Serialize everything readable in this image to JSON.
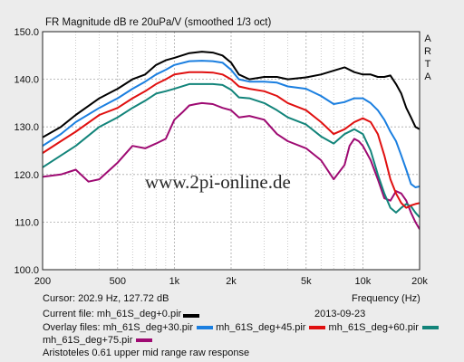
{
  "title": "FR Magnitude dB re 20uPa/V (smoothed 1/3 oct)",
  "brand": "ARTA",
  "watermark": "www.2pi-online.de",
  "cursor_text": "Cursor: 202.9 Hz, 127.72 dB",
  "x_axis_title": "Frequency (Hz)",
  "date": "2013-09-23",
  "current_file_label": "Current file: mh_61S_deg+0.pir",
  "overlay_prefix": "Overlay files:",
  "overlay_files": [
    "mh_61S_deg+30.pir",
    "mh_61S_deg+45.pir",
    "mh_61S_deg+60.pir",
    "mh_61S_deg+75.pir"
  ],
  "description": "Aristoteles 0.61 upper mid range raw response",
  "colors": {
    "background": "#ececec",
    "plot_background": "#ffffff",
    "grid": "#a9a9a9"
  },
  "chart_data": {
    "type": "line",
    "title": "FR Magnitude dB re 20uPa/V (smoothed 1/3 oct)",
    "xlabel": "Frequency (Hz)",
    "ylabel": "",
    "x_scale": "log",
    "xlim": [
      200,
      20000
    ],
    "ylim": [
      100,
      150
    ],
    "grid": true,
    "x_ticks": [
      200,
      500,
      1000,
      2000,
      5000,
      10000,
      20000
    ],
    "x_tick_labels": [
      "200",
      "500",
      "1k",
      "2k",
      "5k",
      "10k",
      "20k"
    ],
    "x_minor_ticks": [
      300,
      400,
      600,
      700,
      800,
      900,
      3000,
      4000,
      6000,
      7000,
      8000,
      9000
    ],
    "y_ticks": [
      100,
      110,
      120,
      130,
      140,
      150
    ],
    "y_tick_labels": [
      "100.0",
      "110.0",
      "120.0",
      "130.0",
      "140.0",
      "150.0"
    ],
    "series": [
      {
        "name": "mh_61S_deg+0.pir",
        "color": "#000000",
        "points": [
          [
            200,
            127.8
          ],
          [
            250,
            130
          ],
          [
            300,
            132.5
          ],
          [
            400,
            136
          ],
          [
            500,
            138
          ],
          [
            600,
            140
          ],
          [
            700,
            141
          ],
          [
            800,
            143
          ],
          [
            900,
            144
          ],
          [
            1000,
            144.5
          ],
          [
            1200,
            145.5
          ],
          [
            1400,
            145.8
          ],
          [
            1600,
            145.6
          ],
          [
            1800,
            145
          ],
          [
            2000,
            143.5
          ],
          [
            2200,
            141
          ],
          [
            2500,
            140
          ],
          [
            3000,
            140.5
          ],
          [
            3500,
            140.5
          ],
          [
            4000,
            140
          ],
          [
            5000,
            140.4
          ],
          [
            6000,
            141
          ],
          [
            7000,
            141.8
          ],
          [
            8000,
            142.5
          ],
          [
            9000,
            141.5
          ],
          [
            10000,
            141
          ],
          [
            11000,
            141
          ],
          [
            12000,
            140.5
          ],
          [
            13000,
            140.5
          ],
          [
            14000,
            140.8
          ],
          [
            15000,
            139
          ],
          [
            16000,
            137
          ],
          [
            17000,
            134
          ],
          [
            18000,
            132
          ],
          [
            19000,
            130
          ],
          [
            20000,
            129.5
          ]
        ]
      },
      {
        "name": "mh_61S_deg+30.pir",
        "color": "#1b7fe0",
        "points": [
          [
            200,
            126
          ],
          [
            250,
            128.5
          ],
          [
            300,
            131
          ],
          [
            400,
            134
          ],
          [
            500,
            136
          ],
          [
            600,
            138
          ],
          [
            700,
            139.5
          ],
          [
            800,
            141
          ],
          [
            900,
            142
          ],
          [
            1000,
            143
          ],
          [
            1200,
            143.8
          ],
          [
            1400,
            143.9
          ],
          [
            1600,
            143.8
          ],
          [
            1800,
            143.5
          ],
          [
            2000,
            142
          ],
          [
            2200,
            140
          ],
          [
            2500,
            139.5
          ],
          [
            3000,
            139.5
          ],
          [
            3500,
            139.3
          ],
          [
            4000,
            138.5
          ],
          [
            5000,
            138
          ],
          [
            6000,
            136.5
          ],
          [
            7000,
            134.8
          ],
          [
            8000,
            135.2
          ],
          [
            9000,
            136
          ],
          [
            10000,
            136
          ],
          [
            11000,
            135
          ],
          [
            12000,
            133.5
          ],
          [
            13000,
            131.5
          ],
          [
            14000,
            129
          ],
          [
            15000,
            127
          ],
          [
            16000,
            124
          ],
          [
            17000,
            121
          ],
          [
            18000,
            118
          ],
          [
            19000,
            117.3
          ],
          [
            20000,
            117.5
          ]
        ]
      },
      {
        "name": "mh_61S_deg+45.pir",
        "color": "#e01010",
        "points": [
          [
            200,
            124.5
          ],
          [
            250,
            127
          ],
          [
            300,
            129
          ],
          [
            400,
            132.5
          ],
          [
            500,
            134
          ],
          [
            600,
            136
          ],
          [
            700,
            137.5
          ],
          [
            800,
            139
          ],
          [
            900,
            140
          ],
          [
            1000,
            141
          ],
          [
            1200,
            141.5
          ],
          [
            1400,
            141.5
          ],
          [
            1600,
            141.4
          ],
          [
            1800,
            141
          ],
          [
            2000,
            140
          ],
          [
            2200,
            138.5
          ],
          [
            2500,
            138
          ],
          [
            3000,
            137.5
          ],
          [
            3500,
            136.5
          ],
          [
            4000,
            135
          ],
          [
            5000,
            133.5
          ],
          [
            6000,
            131
          ],
          [
            7000,
            128.5
          ],
          [
            8000,
            129.5
          ],
          [
            9000,
            131
          ],
          [
            10000,
            131.8
          ],
          [
            11000,
            131
          ],
          [
            12000,
            128.5
          ],
          [
            13000,
            124
          ],
          [
            14000,
            119
          ],
          [
            15000,
            116
          ],
          [
            16000,
            114
          ],
          [
            17000,
            113
          ],
          [
            18000,
            113.5
          ],
          [
            19000,
            113.8
          ],
          [
            20000,
            114
          ]
        ]
      },
      {
        "name": "mh_61S_deg+60.pir",
        "color": "#12847a",
        "points": [
          [
            200,
            121.5
          ],
          [
            250,
            124
          ],
          [
            300,
            126
          ],
          [
            400,
            130
          ],
          [
            500,
            132
          ],
          [
            600,
            134
          ],
          [
            700,
            135.5
          ],
          [
            800,
            137
          ],
          [
            900,
            137.5
          ],
          [
            1000,
            138
          ],
          [
            1200,
            139
          ],
          [
            1400,
            139
          ],
          [
            1600,
            139
          ],
          [
            1800,
            138.8
          ],
          [
            2000,
            137.8
          ],
          [
            2200,
            136.2
          ],
          [
            2500,
            136
          ],
          [
            3000,
            135
          ],
          [
            3500,
            133.5
          ],
          [
            4000,
            132
          ],
          [
            5000,
            130.5
          ],
          [
            6000,
            128
          ],
          [
            7000,
            126.5
          ],
          [
            8000,
            128.5
          ],
          [
            9000,
            129.5
          ],
          [
            10000,
            128.5
          ],
          [
            11000,
            125
          ],
          [
            12000,
            120
          ],
          [
            13000,
            116
          ],
          [
            14000,
            113
          ],
          [
            15000,
            112
          ],
          [
            16000,
            113
          ],
          [
            17000,
            113.8
          ],
          [
            18000,
            113.3
          ],
          [
            19000,
            112
          ],
          [
            20000,
            111
          ]
        ]
      },
      {
        "name": "mh_61S_deg+75.pir",
        "color": "#9e0a72",
        "points": [
          [
            200,
            119.5
          ],
          [
            250,
            120
          ],
          [
            300,
            121
          ],
          [
            350,
            118.5
          ],
          [
            400,
            119
          ],
          [
            500,
            122.5
          ],
          [
            600,
            126
          ],
          [
            700,
            125.5
          ],
          [
            800,
            126.5
          ],
          [
            900,
            127.5
          ],
          [
            1000,
            131.5
          ],
          [
            1100,
            133
          ],
          [
            1200,
            134.5
          ],
          [
            1300,
            134.8
          ],
          [
            1400,
            135
          ],
          [
            1600,
            134.8
          ],
          [
            1800,
            134
          ],
          [
            2000,
            133.5
          ],
          [
            2200,
            132
          ],
          [
            2500,
            132.3
          ],
          [
            3000,
            131.5
          ],
          [
            3500,
            128.5
          ],
          [
            4000,
            127
          ],
          [
            5000,
            125.5
          ],
          [
            6000,
            123
          ],
          [
            7000,
            119
          ],
          [
            8000,
            122
          ],
          [
            8500,
            126
          ],
          [
            9000,
            127.5
          ],
          [
            9500,
            127
          ],
          [
            10000,
            126
          ],
          [
            11000,
            123
          ],
          [
            12000,
            119
          ],
          [
            13000,
            115
          ],
          [
            14000,
            114.5
          ],
          [
            15000,
            116.5
          ],
          [
            16000,
            116
          ],
          [
            17000,
            114.5
          ],
          [
            18000,
            112
          ],
          [
            19000,
            110
          ],
          [
            20000,
            108.5
          ]
        ]
      }
    ]
  }
}
